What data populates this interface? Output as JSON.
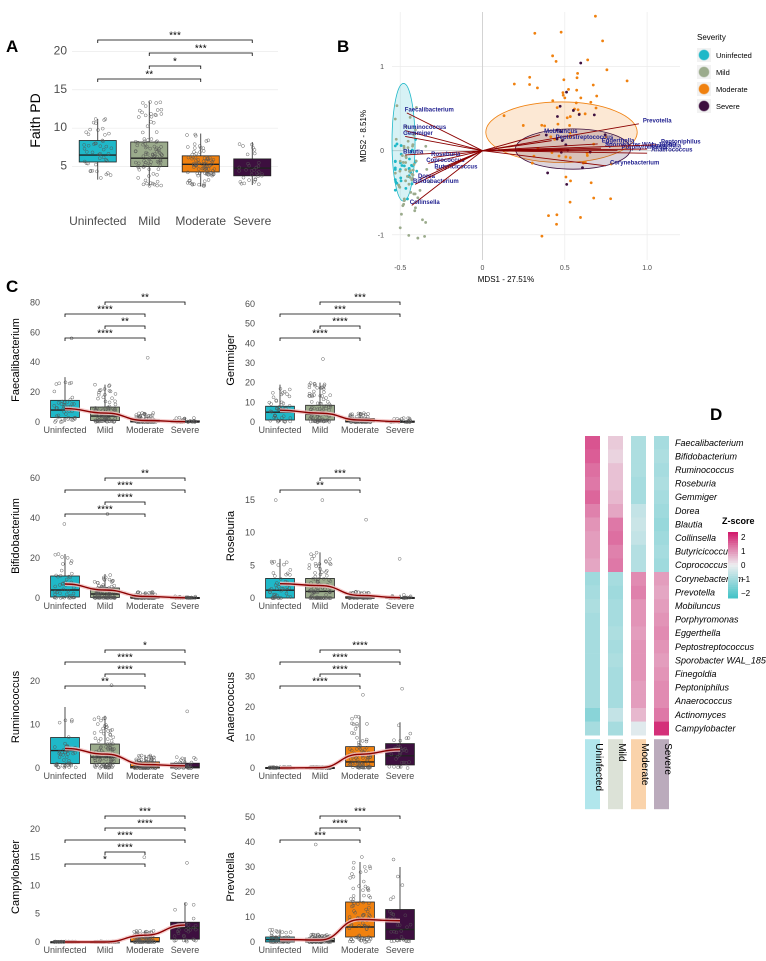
{
  "panels": {
    "a": "A",
    "b": "B",
    "c": "C",
    "d": "D"
  },
  "colors": {
    "Uninfected": "#1fb8c8",
    "Mild": "#9bab8c",
    "Moderate": "#f0810f",
    "Severe": "#3d0f3f"
  },
  "chart_data": [
    {
      "id": "A",
      "type": "box",
      "ylabel": "Faith PD",
      "categories": [
        "Uninfected",
        "Mild",
        "Moderate",
        "Severe"
      ],
      "ylim": [
        0,
        22
      ],
      "yticks": [
        5,
        10,
        15,
        20
      ],
      "boxes": [
        {
          "q1": 5.6,
          "median": 6.5,
          "q3": 8.4,
          "wlo": 3.3,
          "whi": 11.2
        },
        {
          "q1": 5.0,
          "median": 6.1,
          "q3": 8.2,
          "wlo": 2.5,
          "whi": 13.5
        },
        {
          "q1": 4.3,
          "median": 5.3,
          "q3": 6.4,
          "wlo": 2.4,
          "whi": 9.3
        },
        {
          "q1": 3.8,
          "median": 4.8,
          "q3": 6.0,
          "wlo": 2.6,
          "whi": 8.2
        }
      ],
      "n": [
        45,
        95,
        85,
        32
      ],
      "comparisons": [
        {
          "from": 0,
          "to": 3,
          "label": "***"
        },
        {
          "from": 1,
          "to": 3,
          "label": "***"
        },
        {
          "from": 1,
          "to": 2,
          "label": "*"
        },
        {
          "from": 0,
          "to": 2,
          "label": "**"
        }
      ]
    },
    {
      "id": "B",
      "type": "scatter",
      "title": "Severity",
      "xlabel": "MDS1 - 27.51%",
      "ylabel": "MDS2 - 8.51%",
      "xlim": [
        -0.55,
        1.2
      ],
      "ylim": [
        -1.3,
        1.65
      ],
      "xticks": [
        -0.5,
        0,
        0.5,
        1
      ],
      "xtick_labels": [
        "-0.5",
        "0",
        "0.5",
        "1.0"
      ],
      "yticks": [
        -1,
        0,
        1
      ],
      "ytick_labels": [
        "-1",
        "0",
        "1"
      ],
      "legend": [
        "Uninfected",
        "Mild",
        "Moderate",
        "Severe"
      ],
      "groups": [
        {
          "name": "Uninfected",
          "cx": -0.48,
          "cy": -0.2,
          "spread": 0.12,
          "n": 35
        },
        {
          "name": "Mild",
          "cx": -0.43,
          "cy": -0.25,
          "spread": 0.22,
          "n": 60
        },
        {
          "name": "Moderate",
          "cx": 0.5,
          "cy": 0.2,
          "spread": 0.35,
          "n": 70
        },
        {
          "name": "Severe",
          "cx": 0.55,
          "cy": 0.05,
          "spread": 0.25,
          "n": 20
        }
      ],
      "ellipses": [
        {
          "name": "Uninfected",
          "cx": -0.48,
          "cy": 0.1,
          "rx": 0.07,
          "ry": 0.7
        },
        {
          "name": "Moderate",
          "cx": 0.48,
          "cy": 0.22,
          "rx": 0.46,
          "ry": 0.36
        },
        {
          "name": "Severe",
          "cx": 0.55,
          "cy": 0.02,
          "rx": 0.35,
          "ry": 0.24
        }
      ],
      "vectors": [
        {
          "label": "Faecalibacterium",
          "x": -0.46,
          "y": 0.45
        },
        {
          "label": "Ruminococcus",
          "x": -0.47,
          "y": 0.24
        },
        {
          "label": "Gemmiger",
          "x": -0.47,
          "y": 0.17
        },
        {
          "label": "Blautia",
          "x": -0.47,
          "y": -0.05
        },
        {
          "label": "Roseburia",
          "x": -0.3,
          "y": -0.08
        },
        {
          "label": "Coprococcus",
          "x": -0.33,
          "y": -0.15
        },
        {
          "label": "Butyricicoccus",
          "x": -0.28,
          "y": -0.23
        },
        {
          "label": "Dorea",
          "x": -0.38,
          "y": -0.34
        },
        {
          "label": "Bifidobacterium",
          "x": -0.41,
          "y": -0.4
        },
        {
          "label": "Collinsella",
          "x": -0.43,
          "y": -0.65
        },
        {
          "label": "Prevotella",
          "x": 0.95,
          "y": 0.32
        },
        {
          "label": "Mobiluncus",
          "x": 0.35,
          "y": 0.19
        },
        {
          "label": "Peptostreptococcus",
          "x": 0.42,
          "y": 0.12
        },
        {
          "label": "Eggerthella",
          "x": 0.7,
          "y": 0.08
        },
        {
          "label": "Sporobacter WAL_1855D",
          "x": 0.72,
          "y": 0.03
        },
        {
          "label": "Porphyromonas",
          "x": 0.82,
          "y": 0.0
        },
        {
          "label": "Peptoniphilus",
          "x": 1.06,
          "y": 0.07
        },
        {
          "label": "Finegoldia",
          "x": 1.0,
          "y": 0.02
        },
        {
          "label": "Anaerococcus",
          "x": 1.0,
          "y": -0.03
        },
        {
          "label": "Corynebacterium",
          "x": 0.75,
          "y": -0.18
        }
      ]
    },
    {
      "id": "C1",
      "type": "box",
      "ylabel": "Faecalibacterium",
      "categories": [
        "Uninfected",
        "Mild",
        "Moderate",
        "Severe"
      ],
      "ylim": [
        0,
        83
      ],
      "yticks": [
        0,
        20,
        40,
        60,
        80
      ],
      "boxes": [
        {
          "q1": 3,
          "median": 8,
          "q3": 14.5,
          "wlo": 0,
          "whi": 30
        },
        {
          "q1": 1,
          "median": 4,
          "q3": 10,
          "wlo": 0,
          "whi": 25
        },
        {
          "q1": 0,
          "median": 0.3,
          "q3": 1.5,
          "wlo": 0,
          "whi": 6
        },
        {
          "q1": 0,
          "median": 0,
          "q3": 0.8,
          "wlo": 0,
          "whi": 3
        }
      ],
      "trend": [
        9,
        6,
        1,
        0.2
      ],
      "outliers": [
        [
          0,
          56
        ],
        [
          2,
          43
        ]
      ],
      "n": [
        45,
        95,
        85,
        30
      ],
      "comparisons": [
        {
          "from": 1,
          "to": 3,
          "label": "**"
        },
        {
          "from": 0,
          "to": 2,
          "label": "****"
        },
        {
          "from": 1,
          "to": 2,
          "label": "**"
        },
        {
          "from": 0,
          "to": 2,
          "label": "****"
        }
      ]
    },
    {
      "id": "C2",
      "type": "box",
      "ylabel": "Gemmiger",
      "categories": [
        "Uninfected",
        "Mild",
        "Moderate",
        "Severe"
      ],
      "ylim": [
        0,
        63
      ],
      "yticks": [
        0,
        10,
        20,
        30,
        40,
        50,
        60
      ],
      "boxes": [
        {
          "q1": 1,
          "median": 5,
          "q3": 8,
          "wlo": 0,
          "whi": 19
        },
        {
          "q1": 1,
          "median": 4,
          "q3": 8.5,
          "wlo": 0,
          "whi": 20
        },
        {
          "q1": 0,
          "median": 0.2,
          "q3": 1.8,
          "wlo": 0,
          "whi": 5
        },
        {
          "q1": 0,
          "median": 0,
          "q3": 0.5,
          "wlo": 0,
          "whi": 2
        }
      ],
      "trend": [
        6,
        4.5,
        1,
        0.2
      ],
      "outliers": [
        [
          1,
          32
        ]
      ],
      "n": [
        45,
        95,
        85,
        30
      ],
      "comparisons": [
        {
          "from": 1,
          "to": 3,
          "label": "***"
        },
        {
          "from": 0,
          "to": 3,
          "label": "***"
        },
        {
          "from": 1,
          "to": 2,
          "label": "****"
        },
        {
          "from": 0,
          "to": 2,
          "label": "****"
        }
      ]
    },
    {
      "id": "C3",
      "type": "box",
      "ylabel": "Bifidobacterium",
      "categories": [
        "Uninfected",
        "Mild",
        "Moderate",
        "Severe"
      ],
      "ylim": [
        0,
        62
      ],
      "yticks": [
        0,
        20,
        40,
        60
      ],
      "boxes": [
        {
          "q1": 0.5,
          "median": 4,
          "q3": 11,
          "wlo": 0,
          "whi": 22
        },
        {
          "q1": 0.3,
          "median": 2,
          "q3": 5,
          "wlo": 0,
          "whi": 12
        },
        {
          "q1": 0,
          "median": 0,
          "q3": 0.8,
          "wlo": 0,
          "whi": 3
        },
        {
          "q1": 0,
          "median": 0,
          "q3": 0.3,
          "wlo": 0,
          "whi": 1
        }
      ],
      "trend": [
        7,
        4,
        0.8,
        0.1
      ],
      "outliers": [
        [
          0,
          37
        ],
        [
          1,
          42
        ]
      ],
      "n": [
        45,
        95,
        85,
        30
      ],
      "comparisons": [
        {
          "from": 1,
          "to": 3,
          "label": "**"
        },
        {
          "from": 0,
          "to": 3,
          "label": "****"
        },
        {
          "from": 1,
          "to": 2,
          "label": "****"
        },
        {
          "from": 0,
          "to": 2,
          "label": "****"
        }
      ]
    },
    {
      "id": "C4",
      "type": "box",
      "ylabel": "Roseburia",
      "categories": [
        "Uninfected",
        "Mild",
        "Moderate",
        "Severe"
      ],
      "ylim": [
        0,
        19
      ],
      "yticks": [
        0,
        5,
        10,
        15
      ],
      "boxes": [
        {
          "q1": 0,
          "median": 1.2,
          "q3": 3,
          "wlo": 0,
          "whi": 6
        },
        {
          "q1": 0,
          "median": 1,
          "q3": 3,
          "wlo": 0,
          "whi": 7
        },
        {
          "q1": 0,
          "median": 0,
          "q3": 0.2,
          "wlo": 0,
          "whi": 1
        },
        {
          "q1": 0,
          "median": 0,
          "q3": 0.1,
          "wlo": 0,
          "whi": 0.5
        }
      ],
      "trend": [
        2.2,
        1.9,
        0.4,
        0.05
      ],
      "outliers": [
        [
          0,
          15
        ],
        [
          1,
          15
        ],
        [
          2,
          12
        ],
        [
          3,
          6
        ]
      ],
      "n": [
        45,
        95,
        85,
        30
      ],
      "comparisons": [
        {
          "from": 1,
          "to": 2,
          "label": "***"
        },
        {
          "from": 0,
          "to": 2,
          "label": "**"
        }
      ]
    },
    {
      "id": "C5",
      "type": "box",
      "ylabel": "Ruminococcus",
      "categories": [
        "Uninfected",
        "Mild",
        "Moderate",
        "Severe"
      ],
      "ylim": [
        0,
        28
      ],
      "yticks": [
        0,
        10,
        20
      ],
      "boxes": [
        {
          "q1": 1,
          "median": 4,
          "q3": 7,
          "wlo": 0,
          "whi": 14
        },
        {
          "q1": 1,
          "median": 2.5,
          "q3": 5.5,
          "wlo": 0,
          "whi": 12
        },
        {
          "q1": 0,
          "median": 0.3,
          "q3": 1.4,
          "wlo": 0,
          "whi": 3
        },
        {
          "q1": 0,
          "median": 0.2,
          "q3": 1.1,
          "wlo": 0,
          "whi": 2.5
        }
      ],
      "trend": [
        4.5,
        3.2,
        0.8,
        0.5
      ],
      "outliers": [
        [
          1,
          19
        ],
        [
          3,
          13
        ]
      ],
      "n": [
        45,
        95,
        85,
        30
      ],
      "comparisons": [
        {
          "from": 1,
          "to": 3,
          "label": "*"
        },
        {
          "from": 0,
          "to": 3,
          "label": "****"
        },
        {
          "from": 1,
          "to": 2,
          "label": "****"
        },
        {
          "from": 0,
          "to": 2,
          "label": "**"
        }
      ]
    },
    {
      "id": "C6",
      "type": "box",
      "ylabel": "Anaerococcus",
      "categories": [
        "Uninfected",
        "Mild",
        "Moderate",
        "Severe"
      ],
      "ylim": [
        0,
        40
      ],
      "yticks": [
        0,
        10,
        20,
        30
      ],
      "boxes": [
        {
          "q1": 0,
          "median": 0,
          "q3": 0.2,
          "wlo": 0,
          "whi": 0.3
        },
        {
          "q1": 0,
          "median": 0,
          "q3": 0.2,
          "wlo": 0,
          "whi": 0.3
        },
        {
          "q1": 0.5,
          "median": 2,
          "q3": 7,
          "wlo": 0,
          "whi": 17
        },
        {
          "q1": 1,
          "median": 4,
          "q3": 8,
          "wlo": 0,
          "whi": 15
        }
      ],
      "trend": [
        0,
        0.1,
        4.5,
        6
      ],
      "outliers": [
        [
          2,
          24
        ],
        [
          3,
          26
        ]
      ],
      "n": [
        45,
        95,
        85,
        30
      ],
      "comparisons": [
        {
          "from": 1,
          "to": 3,
          "label": "****"
        },
        {
          "from": 0,
          "to": 3,
          "label": "****"
        },
        {
          "from": 1,
          "to": 2,
          "label": "****"
        },
        {
          "from": 0,
          "to": 2,
          "label": "****"
        }
      ]
    },
    {
      "id": "C7",
      "type": "box",
      "ylabel": "Campylobacter",
      "categories": [
        "Uninfected",
        "Mild",
        "Moderate",
        "Severe"
      ],
      "ylim": [
        0,
        23
      ],
      "yticks": [
        0,
        5,
        10,
        15,
        20
      ],
      "boxes": [
        {
          "q1": 0,
          "median": 0,
          "q3": 0.05,
          "wlo": 0,
          "whi": 0.1
        },
        {
          "q1": 0,
          "median": 0,
          "q3": 0.05,
          "wlo": 0,
          "whi": 0.1
        },
        {
          "q1": 0,
          "median": 0.1,
          "q3": 0.8,
          "wlo": 0,
          "whi": 2
        },
        {
          "q1": 0.5,
          "median": 2.5,
          "q3": 3.5,
          "wlo": 0,
          "whi": 7
        }
      ],
      "trend": [
        0,
        0,
        1.2,
        3
      ],
      "outliers": [
        [
          2,
          15
        ],
        [
          3,
          14
        ]
      ],
      "n": [
        45,
        95,
        85,
        30
      ],
      "comparisons": [
        {
          "from": 1,
          "to": 3,
          "label": "***"
        },
        {
          "from": 1,
          "to": 3,
          "label": "****"
        },
        {
          "from": 0,
          "to": 3,
          "label": "****"
        },
        {
          "from": 1,
          "to": 2,
          "label": "****"
        },
        {
          "from": 0,
          "to": 2,
          "label": "*"
        }
      ]
    },
    {
      "id": "C8",
      "type": "box",
      "ylabel": "Prevotella",
      "categories": [
        "Uninfected",
        "Mild",
        "Moderate",
        "Severe"
      ],
      "ylim": [
        0,
        52
      ],
      "yticks": [
        0,
        10,
        20,
        30,
        40,
        50
      ],
      "boxes": [
        {
          "q1": 0,
          "median": 1,
          "q3": 2,
          "wlo": 0,
          "whi": 5
        },
        {
          "q1": 0,
          "median": 0.5,
          "q3": 1.5,
          "wlo": 0,
          "whi": 3
        },
        {
          "q1": 2,
          "median": 6,
          "q3": 16,
          "wlo": 0,
          "whi": 32
        },
        {
          "q1": 1,
          "median": 5,
          "q3": 13,
          "wlo": 0,
          "whi": 30
        }
      ],
      "trend": [
        1,
        0.8,
        9,
        8.5
      ],
      "outliers": [
        [
          1,
          39
        ],
        [
          2,
          34
        ],
        [
          3,
          33
        ]
      ],
      "n": [
        45,
        95,
        85,
        30
      ],
      "comparisons": [
        {
          "from": 1,
          "to": 3,
          "label": "***"
        },
        {
          "from": 1,
          "to": 2,
          "label": "****"
        },
        {
          "from": 0,
          "to": 2,
          "label": "***"
        }
      ]
    },
    {
      "id": "D",
      "type": "heatmap",
      "legend_title": "Z-score",
      "scale_ticks": [
        "2",
        "1",
        "0",
        "−1",
        "−2"
      ],
      "scale_range": [
        -2.3,
        2.3
      ],
      "columns": [
        "Uninfected",
        "Mild",
        "Moderate",
        "Severe"
      ],
      "rows": [
        "Faecalibacterium",
        "Bifidobacterium",
        "Ruminococcus",
        "Roseburia",
        "Gemmiger",
        "Dorea",
        "Blautia",
        "Collinsella",
        "Butyricicoccus",
        "Coprococcus",
        "Corynebacterium",
        "Prevotella",
        "Mobiluncus",
        "Porphyromonas",
        "Eggerthella",
        "Peptostreptococcus",
        "Sporobacter WAL_1855D",
        "Finegoldia",
        "Peptoniphilus",
        "Anaerococcus",
        "Actinomyces",
        "Campylobacter"
      ],
      "values": [
        [
          1.7,
          0.4,
          -0.9,
          -1.0
        ],
        [
          1.6,
          0.3,
          -0.9,
          -0.9
        ],
        [
          1.4,
          0.5,
          -0.9,
          -1.0
        ],
        [
          1.3,
          0.5,
          -1.0,
          -0.9
        ],
        [
          1.5,
          0.6,
          -1.0,
          -1.0
        ],
        [
          1.2,
          0.8,
          -0.6,
          -1.1
        ],
        [
          1.0,
          1.3,
          -0.5,
          -1.2
        ],
        [
          0.9,
          1.4,
          -0.6,
          -1.1
        ],
        [
          0.9,
          1.2,
          -0.8,
          -1.0
        ],
        [
          0.8,
          1.3,
          -0.8,
          -1.1
        ],
        [
          -1.1,
          -1.0,
          1.1,
          0.9
        ],
        [
          -1.0,
          -1.1,
          1.2,
          0.8
        ],
        [
          -0.9,
          -1.0,
          1.0,
          0.9
        ],
        [
          -1.0,
          -1.0,
          1.0,
          1.0
        ],
        [
          -1.0,
          -0.9,
          0.9,
          1.1
        ],
        [
          -1.0,
          -1.0,
          1.0,
          1.0
        ],
        [
          -1.0,
          -0.9,
          1.0,
          0.9
        ],
        [
          -1.0,
          -1.0,
          1.0,
          1.0
        ],
        [
          -1.0,
          -1.0,
          0.9,
          1.1
        ],
        [
          -1.0,
          -1.0,
          0.9,
          1.1
        ],
        [
          -1.4,
          -0.6,
          0.6,
          1.3
        ],
        [
          -1.0,
          -1.0,
          -0.2,
          2.1
        ]
      ]
    }
  ]
}
